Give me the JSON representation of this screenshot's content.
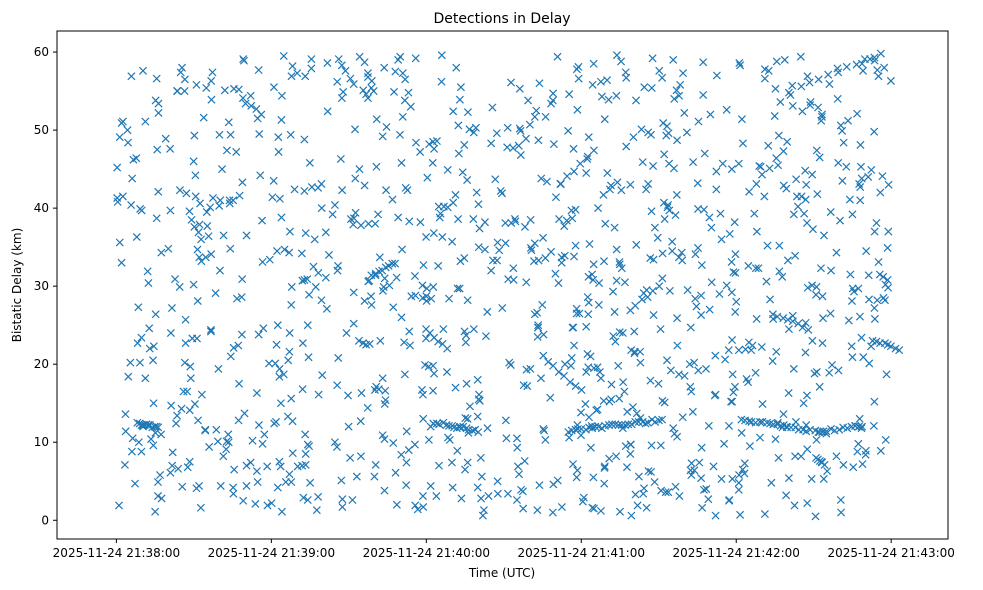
{
  "chart_data": {
    "type": "scatter",
    "title": "Detections in Delay",
    "xlabel": "Time (UTC)",
    "ylabel": "Bistatic Delay (km)",
    "marker": "x",
    "color": "#1f77b4",
    "grid": false,
    "x_unit": "seconds after 2025-11-24 21:38:00",
    "xlim": [
      -23,
      322
    ],
    "ylim": [
      -2.4,
      62.7
    ],
    "xticks": [
      0,
      60,
      120,
      180,
      240,
      300
    ],
    "xtick_labels": [
      "2025-11-24 21:38:00",
      "2025-11-24 21:39:00",
      "2025-11-24 21:40:00",
      "2025-11-24 21:41:00",
      "2025-11-24 21:42:00",
      "2025-11-24 21:43:00"
    ],
    "yticks": [
      0,
      10,
      20,
      30,
      40,
      50,
      60
    ],
    "ytick_labels": [
      "0",
      "10",
      "20",
      "30",
      "40",
      "50",
      "60"
    ],
    "x": [],
    "y": []
  }
}
